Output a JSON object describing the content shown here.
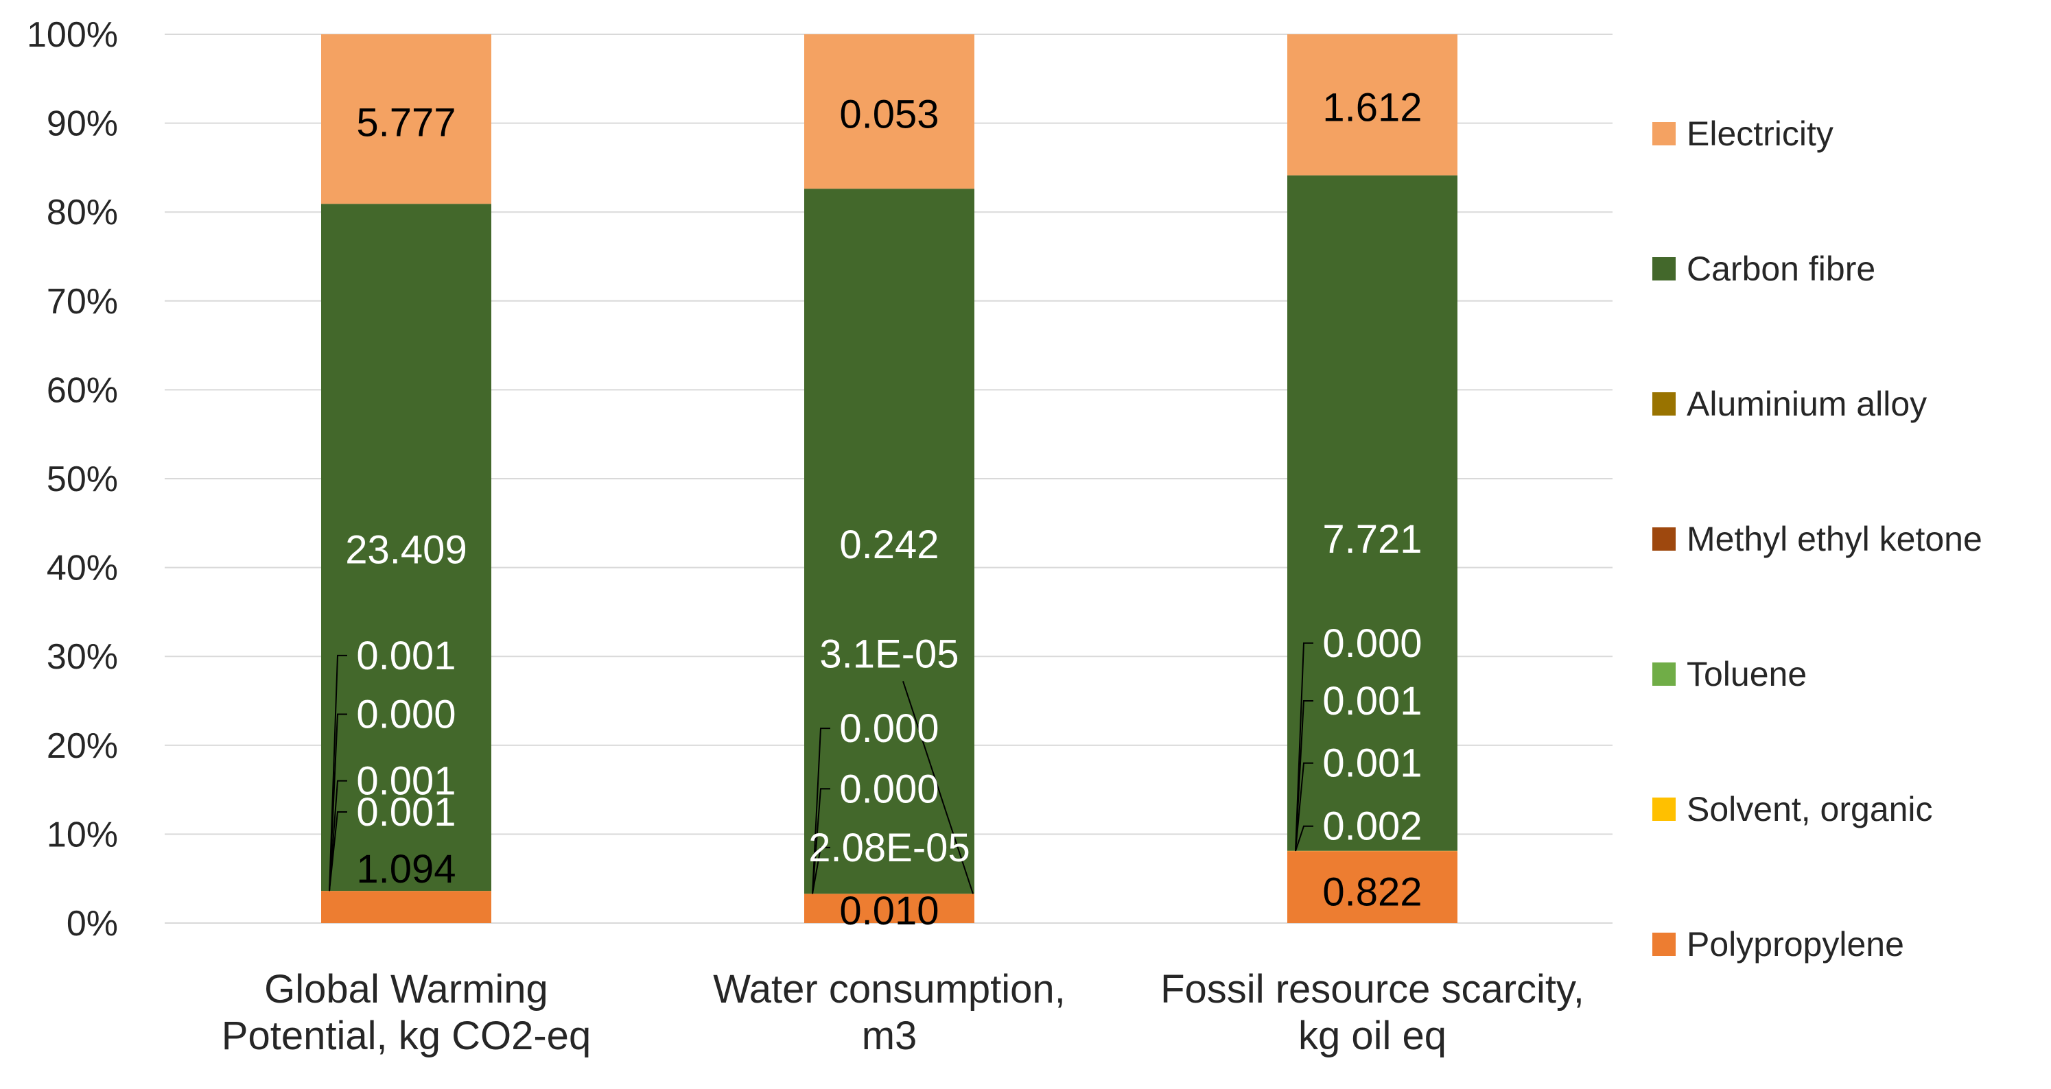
{
  "chart_data": {
    "type": "bar",
    "stacked": "percent",
    "categories": [
      [
        "Global Warming",
        "Potential, kg CO2-eq"
      ],
      [
        "Water consumption,",
        "m3"
      ],
      [
        "Fossil resource scarcity,",
        "kg oil eq"
      ]
    ],
    "y_ticks": [
      "0%",
      "10%",
      "20%",
      "30%",
      "40%",
      "50%",
      "60%",
      "70%",
      "80%",
      "90%",
      "100%"
    ],
    "ylim": [
      0,
      100
    ],
    "legend_position": "right",
    "series": [
      {
        "name": "Polypropylene",
        "color": "#ED7D31",
        "values": [
          1.094,
          0.01,
          0.822
        ],
        "labels": [
          "1.094",
          "0.010",
          "0.822"
        ]
      },
      {
        "name": "Solvent, organic",
        "color": "#FFC000",
        "values": [
          0.001,
          2.08e-05,
          0.002
        ],
        "labels": [
          "0.001",
          "2.08E-05",
          "0.002"
        ]
      },
      {
        "name": "Toluene",
        "color": "#70AD47",
        "values": [
          0.001,
          0.0,
          0.001
        ],
        "labels": [
          "0.001",
          "0.000",
          "0.001"
        ]
      },
      {
        "name": "Methyl ethyl ketone",
        "color": "#9E480E",
        "values": [
          0.0,
          0.0,
          0.001
        ],
        "labels": [
          "0.000",
          "0.000",
          "0.001"
        ]
      },
      {
        "name": "Aluminium alloy",
        "color": "#997300",
        "values": [
          0.001,
          3.1e-05,
          0.0
        ],
        "labels": [
          "0.001",
          "3.1E-05",
          "0.000"
        ]
      },
      {
        "name": "Carbon fibre",
        "color": "#43682B",
        "values": [
          23.409,
          0.242,
          7.721
        ],
        "labels": [
          "23.409",
          "0.242",
          "7.721"
        ]
      },
      {
        "name": "Electricity",
        "color": "#F4A262",
        "values": [
          5.777,
          0.053,
          1.612
        ],
        "labels": [
          "5.777",
          "0.053",
          "1.612"
        ]
      }
    ]
  }
}
